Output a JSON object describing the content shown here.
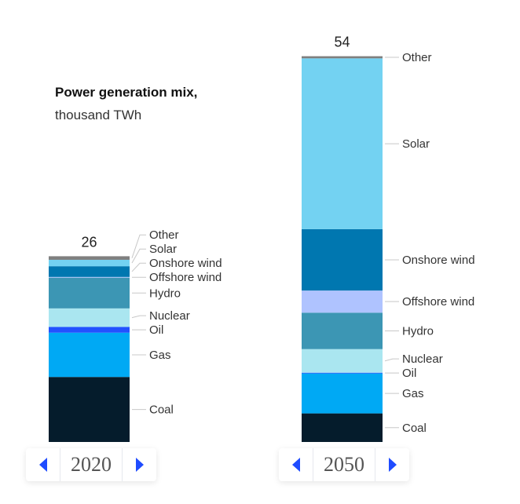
{
  "chart_data": {
    "type": "bar",
    "stacked": true,
    "title": "Power generation mix,",
    "subtitle": "thousand TWh",
    "categories": [
      "2020",
      "2050"
    ],
    "totals": [
      "26",
      "54"
    ],
    "series": [
      {
        "name": "Coal",
        "color": "#051c2c",
        "values": [
          9.1,
          4.0
        ]
      },
      {
        "name": "Gas",
        "color": "#00a9f4",
        "values": [
          6.2,
          5.6
        ]
      },
      {
        "name": "Oil",
        "color": "#2251ff",
        "values": [
          0.8,
          0.1
        ]
      },
      {
        "name": "Nuclear",
        "color": "#aae6f0",
        "values": [
          2.6,
          3.3
        ]
      },
      {
        "name": "Hydro",
        "color": "#3c96b4",
        "values": [
          4.3,
          5.1
        ]
      },
      {
        "name": "Offshore wind",
        "color": "#afc3ff",
        "values": [
          0.1,
          3.1
        ]
      },
      {
        "name": "Onshore wind",
        "color": "#0077b0",
        "values": [
          1.5,
          8.6
        ]
      },
      {
        "name": "Solar",
        "color": "#73d2f2",
        "values": [
          0.9,
          23.9
        ]
      },
      {
        "name": "Other",
        "color": "#7f7f7f",
        "values": [
          0.5,
          0.3
        ]
      }
    ]
  },
  "controls": [
    {
      "year": "2020",
      "prev_icon": "triangle-left-icon",
      "next_icon": "triangle-right-icon"
    },
    {
      "year": "2050",
      "prev_icon": "triangle-left-icon",
      "next_icon": "triangle-right-icon"
    }
  ]
}
